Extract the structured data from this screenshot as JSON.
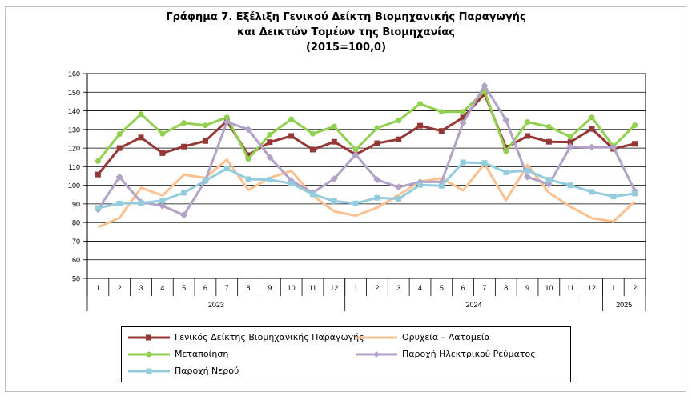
{
  "chart_data": {
    "type": "line",
    "title_lines": [
      "Γράφημα 7. Εξέλιξη Γενικού Δείκτη Βιομηχανικής Παραγωγής",
      "και Δεικτών Τομέων της Βιομηχανίας",
      "(2015=100,0)"
    ],
    "ylim": [
      50,
      160
    ],
    "yticks": [
      50,
      60,
      70,
      80,
      90,
      100,
      110,
      120,
      130,
      140,
      150,
      160
    ],
    "grid": true,
    "legend_position": "bottom",
    "categories": [
      "1",
      "2",
      "3",
      "4",
      "5",
      "6",
      "7",
      "8",
      "9",
      "10",
      "11",
      "12",
      "1",
      "2",
      "3",
      "4",
      "5",
      "6",
      "7",
      "8",
      "9",
      "10",
      "11",
      "12",
      "1",
      "2"
    ],
    "year_groups": [
      {
        "label": "2023",
        "count": 12
      },
      {
        "label": "2024",
        "count": 12
      },
      {
        "label": "2025",
        "count": 2
      }
    ],
    "series": [
      {
        "name": "Γενικός Δείκτης Βιομηχανικής Παραγωγής",
        "color": "#953735",
        "marker": "square",
        "values": [
          105.8,
          120.0,
          125.7,
          117.3,
          120.8,
          123.8,
          134.5,
          116.2,
          123.2,
          126.5,
          119.2,
          123.4,
          116.5,
          122.6,
          124.7,
          132.0,
          129.2,
          136.4,
          149.0,
          120.3,
          126.5,
          123.4,
          123.2,
          130.3,
          119.6,
          122.3
        ]
      },
      {
        "name": "Ορυχεία – Λατομεία",
        "color": "#fac090",
        "marker": "none",
        "values": [
          77.5,
          82.5,
          98.7,
          94.5,
          105.7,
          104.0,
          113.8,
          97.5,
          104.0,
          107.8,
          94.5,
          86.0,
          83.7,
          88.0,
          94.8,
          102.0,
          103.8,
          97.3,
          111.5,
          92.0,
          111.0,
          96.0,
          88.5,
          82.3,
          80.5,
          91.3
        ]
      },
      {
        "name": "Μεταποίηση",
        "color": "#92d050",
        "marker": "circle",
        "values": [
          113.0,
          127.5,
          138.2,
          127.7,
          133.5,
          132.2,
          136.5,
          114.2,
          127.2,
          135.5,
          127.7,
          131.6,
          119.2,
          130.8,
          134.8,
          143.8,
          139.5,
          139.5,
          150.5,
          118.3,
          134.0,
          131.5,
          126.0,
          136.5,
          121.0,
          132.3
        ]
      },
      {
        "name": "Παροχή Ηλεκτρικού Ρεύματος",
        "color": "#b3a2c7",
        "marker": "diamond",
        "values": [
          87.0,
          104.5,
          91.0,
          89.0,
          84.0,
          102.5,
          134.0,
          130.0,
          115.0,
          102.5,
          96.0,
          103.5,
          116.5,
          103.0,
          99.0,
          101.8,
          101.8,
          133.5,
          153.5,
          135.0,
          104.5,
          100.5,
          120.8,
          120.5,
          120.5,
          97.0
        ]
      },
      {
        "name": "Παροχή Νερού",
        "color": "#93cddd",
        "marker": "square",
        "values": [
          87.8,
          90.2,
          90.5,
          91.8,
          96.0,
          102.5,
          109.0,
          103.3,
          103.0,
          101.0,
          95.2,
          91.5,
          90.3,
          93.3,
          92.7,
          100.2,
          99.7,
          112.3,
          112.0,
          107.0,
          108.0,
          103.0,
          100.0,
          96.5,
          94.0,
          95.6
        ]
      }
    ]
  }
}
